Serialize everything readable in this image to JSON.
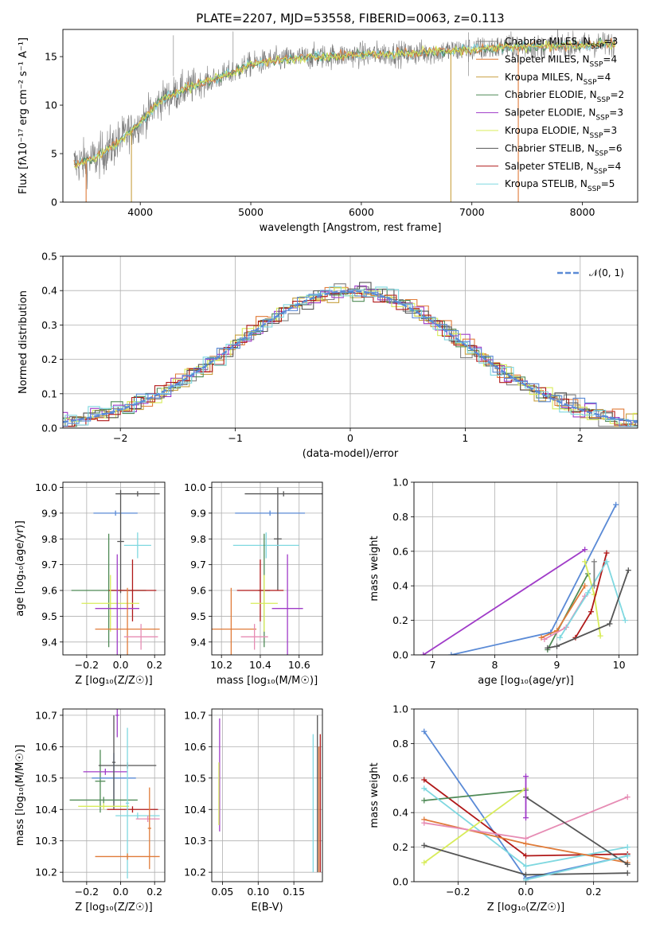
{
  "colors": {
    "chabrier_miles": "#808080",
    "salpeter_miles": "#e07b39",
    "kroupa_miles": "#c8a040",
    "chabrier_elodie": "#4f8a56",
    "salpeter_elodie": "#a03cc8",
    "kroupa_elodie": "#d8ec5a",
    "chabrier_stelib": "#555555",
    "salpeter_stelib": "#b01818",
    "kroupa_stelib": "#7fd8e0",
    "model_blue": "#5a8ad6",
    "model_pink": "#e68cb4",
    "gauss": "#5a8ad6"
  },
  "chart_data": [
    {
      "id": "spectrum",
      "type": "line",
      "title": "PLATE=2207, MJD=53558, FIBERID=0063, z=0.113",
      "xlabel": "wavelength [Angstrom, rest frame]",
      "ylabel": "Flux [fλ10⁻¹⁷ erg cm⁻² s⁻¹ A⁻¹]",
      "xlim": [
        3300,
        8500
      ],
      "ylim": [
        0,
        17.8
      ],
      "xticks": [
        "4000",
        "5000",
        "6000",
        "7000",
        "8000"
      ],
      "yticks": [
        "0",
        "5",
        "10",
        "15"
      ],
      "continuum": [
        [
          3400,
          3.9
        ],
        [
          3600,
          4.5
        ],
        [
          3800,
          6.2
        ],
        [
          4000,
          8.2
        ],
        [
          4200,
          10.6
        ],
        [
          4400,
          11.6
        ],
        [
          4600,
          12.4
        ],
        [
          4800,
          13.2
        ],
        [
          5000,
          14.2
        ],
        [
          5200,
          14.6
        ],
        [
          5400,
          14.8
        ],
        [
          5600,
          15.0
        ],
        [
          5800,
          15.1
        ],
        [
          6000,
          15.2
        ],
        [
          6200,
          15.3
        ],
        [
          6400,
          15.3
        ],
        [
          6600,
          15.4
        ],
        [
          6800,
          15.6
        ],
        [
          7000,
          15.7
        ],
        [
          7200,
          15.9
        ],
        [
          7400,
          16.0
        ],
        [
          7600,
          16.0
        ],
        [
          7800,
          16.1
        ],
        [
          8000,
          16.2
        ],
        [
          8200,
          16.3
        ],
        [
          8300,
          16.3
        ]
      ],
      "legend": [
        {
          "label": "Chabrier MILES, N",
          "sub": "SSP",
          "suffix": "=3"
        },
        {
          "label": "Salpeter MILES, N",
          "sub": "SSP",
          "suffix": "=4"
        },
        {
          "label": "Kroupa MILES, N",
          "sub": "SSP",
          "suffix": "=4"
        },
        {
          "label": "Chabrier ELODIE, N",
          "sub": "SSP",
          "suffix": "=2"
        },
        {
          "label": "Salpeter ELODIE, N",
          "sub": "SSP",
          "suffix": "=3"
        },
        {
          "label": "Kroupa ELODIE, N",
          "sub": "SSP",
          "suffix": "=3"
        },
        {
          "label": "Chabrier STELIB, N",
          "sub": "SSP",
          "suffix": "=6"
        },
        {
          "label": "Salpeter STELIB, N",
          "sub": "SSP",
          "suffix": "=4"
        },
        {
          "label": "Kroupa STELIB, N",
          "sub": "SSP",
          "suffix": "=5"
        }
      ]
    },
    {
      "id": "residuals",
      "type": "histogram",
      "xlabel": "(data-model)/error",
      "ylabel": "Normed distribution",
      "xlim": [
        -2.5,
        2.5
      ],
      "ylim": [
        0,
        0.5
      ],
      "xticks": [
        "−2",
        "−1",
        "0",
        "1",
        "2"
      ],
      "yticks": [
        "0.0",
        "0.1",
        "0.2",
        "0.3",
        "0.4",
        "0.5"
      ],
      "grid": true,
      "gauss_label": "𝒩(0, 1)",
      "legend_position": "top-right"
    },
    {
      "id": "age_vs_Z",
      "type": "scatter",
      "xlabel": "Z [log₁₀(Z/Z☉)]",
      "ylabel": "age  [log₁₀(age/yr)]",
      "xlim": [
        -0.34,
        0.26
      ],
      "ylim": [
        9.35,
        10.02
      ],
      "xticks": [
        "−0.2",
        "0.0",
        "0.2"
      ],
      "yticks": [
        "9.4",
        "9.5",
        "9.6",
        "9.7",
        "9.8",
        "9.9",
        "10.0"
      ],
      "grid": true,
      "points": [
        {
          "x": 0.1,
          "y": 9.975,
          "xerr": 0.13,
          "yerr": 0.01,
          "c": "chabrier_stelib"
        },
        {
          "x": -0.03,
          "y": 9.9,
          "xerr": 0.13,
          "yerr": 0.01,
          "c": "model_blue"
        },
        {
          "x": 0.0,
          "y": 9.79,
          "xerr": 0.02,
          "yerr": 0.2,
          "c": "chabrier_stelib"
        },
        {
          "x": 0.1,
          "y": 9.775,
          "xerr": 0.08,
          "yerr": 0.05,
          "c": "kroupa_stelib"
        },
        {
          "x": -0.07,
          "y": 9.6,
          "xerr": 0.22,
          "yerr": 0.22,
          "c": "chabrier_elodie"
        },
        {
          "x": 0.07,
          "y": 9.6,
          "xerr": 0.14,
          "yerr": 0.12,
          "c": "salpeter_stelib"
        },
        {
          "x": -0.06,
          "y": 9.55,
          "xerr": 0.17,
          "yerr": 0.11,
          "c": "kroupa_elodie"
        },
        {
          "x": -0.02,
          "y": 9.53,
          "xerr": 0.13,
          "yerr": 0.21,
          "c": "salpeter_elodie"
        },
        {
          "x": 0.04,
          "y": 9.45,
          "xerr": 0.19,
          "yerr": 0.16,
          "c": "salpeter_miles"
        },
        {
          "x": 0.12,
          "y": 9.42,
          "xerr": 0.1,
          "yerr": 0.05,
          "c": "model_pink"
        }
      ]
    },
    {
      "id": "age_vs_mass",
      "type": "scatter",
      "xlabel": "mass [log₁₀(M/M☉)]",
      "ylabel": "",
      "xlim": [
        10.15,
        10.72
      ],
      "ylim": [
        9.35,
        10.02
      ],
      "xticks": [
        "10.2",
        "10.4",
        "10.6"
      ],
      "yticks": [
        "9.4",
        "9.5",
        "9.6",
        "9.7",
        "9.8",
        "9.9",
        "10.0"
      ],
      "grid": true,
      "points": [
        {
          "x": 10.52,
          "y": 9.975,
          "xerr": 0.2,
          "yerr": 0.01,
          "c": "chabrier_stelib"
        },
        {
          "x": 10.45,
          "y": 9.9,
          "xerr": 0.18,
          "yerr": 0.01,
          "c": "model_blue"
        },
        {
          "x": 10.49,
          "y": 9.8,
          "xerr": 0.02,
          "yerr": 0.2,
          "c": "chabrier_stelib"
        },
        {
          "x": 10.43,
          "y": 9.775,
          "xerr": 0.17,
          "yerr": 0.05,
          "c": "kroupa_stelib"
        },
        {
          "x": 10.42,
          "y": 9.6,
          "xerr": 0.03,
          "yerr": 0.22,
          "c": "chabrier_elodie"
        },
        {
          "x": 10.4,
          "y": 9.6,
          "xerr": 0.12,
          "yerr": 0.12,
          "c": "salpeter_stelib"
        },
        {
          "x": 10.42,
          "y": 9.55,
          "xerr": 0.07,
          "yerr": 0.11,
          "c": "kroupa_elodie"
        },
        {
          "x": 10.54,
          "y": 9.53,
          "xerr": 0.08,
          "yerr": 0.21,
          "c": "salpeter_elodie"
        },
        {
          "x": 10.25,
          "y": 9.45,
          "xerr": 0.13,
          "yerr": 0.16,
          "c": "salpeter_miles"
        },
        {
          "x": 10.37,
          "y": 9.42,
          "xerr": 0.07,
          "yerr": 0.05,
          "c": "model_pink"
        }
      ]
    },
    {
      "id": "weight_vs_age",
      "type": "line",
      "xlabel": "age  [log₁₀(age/yr)]",
      "ylabel": "mass weight",
      "xlim": [
        6.7,
        10.3
      ],
      "ylim": [
        0,
        1.0
      ],
      "xticks": [
        "7",
        "8",
        "9",
        "10"
      ],
      "yticks": [
        "0.0",
        "0.2",
        "0.4",
        "0.6",
        "0.8",
        "1.0"
      ],
      "grid": true,
      "series": [
        {
          "c": "model_blue",
          "x": [
            7.3,
            8.9,
            9.95
          ],
          "y": [
            0.0,
            0.13,
            0.87
          ]
        },
        {
          "c": "salpeter_elodie",
          "x": [
            6.85,
            9.45
          ],
          "y": [
            0.0,
            0.61
          ]
        },
        {
          "c": "chabrier_elodie",
          "x": [
            8.85,
            9.5
          ],
          "y": [
            0.03,
            0.47
          ]
        },
        {
          "c": "salpeter_miles",
          "x": [
            8.75,
            9.0,
            9.45
          ],
          "y": [
            0.1,
            0.14,
            0.4
          ]
        },
        {
          "c": "model_pink",
          "x": [
            8.8,
            9.15,
            9.45
          ],
          "y": [
            0.09,
            0.16,
            0.34
          ]
        },
        {
          "c": "kroupa_elodie",
          "x": [
            9.45,
            9.6,
            9.7
          ],
          "y": [
            0.54,
            0.35,
            0.11
          ]
        },
        {
          "c": "salpeter_stelib",
          "x": [
            9.3,
            9.55,
            9.8
          ],
          "y": [
            0.1,
            0.25,
            0.59
          ]
        },
        {
          "c": "kroupa_stelib",
          "x": [
            9.05,
            9.5,
            9.8,
            10.1
          ],
          "y": [
            0.1,
            0.36,
            0.54,
            0.2
          ]
        },
        {
          "c": "chabrier_stelib",
          "x": [
            8.85,
            9.0,
            9.85,
            10.15
          ],
          "y": [
            0.04,
            0.05,
            0.18,
            0.49
          ]
        },
        {
          "c": "chabrier_miles",
          "x": [
            9.6,
            9.6
          ],
          "y": [
            0.54,
            0.4
          ]
        }
      ]
    },
    {
      "id": "mass_vs_Z",
      "type": "scatter",
      "xlabel": "Z [log₁₀(Z/Z☉)]",
      "ylabel": "mass [log₁₀(M/M☉)]",
      "xlim": [
        -0.34,
        0.26
      ],
      "ylim": [
        10.17,
        10.72
      ],
      "xticks": [
        "−0.2",
        "0.0",
        "0.2"
      ],
      "yticks": [
        "10.2",
        "10.3",
        "10.4",
        "10.5",
        "10.6",
        "10.7"
      ],
      "grid": true,
      "points": [
        {
          "x": -0.02,
          "y": 10.7,
          "xerr": 0.01,
          "yerr": 0.07,
          "c": "salpeter_elodie"
        },
        {
          "x": -0.12,
          "y": 10.49,
          "xerr": 0.03,
          "yerr": 0.1,
          "c": "chabrier_elodie"
        },
        {
          "x": 0.04,
          "y": 10.54,
          "xerr": 0.17,
          "yerr": 0.01,
          "c": "chabrier_stelib"
        },
        {
          "x": -0.09,
          "y": 10.52,
          "xerr": 0.13,
          "yerr": 0.01,
          "c": "salpeter_elodie"
        },
        {
          "x": -0.04,
          "y": 10.5,
          "xerr": 0.13,
          "yerr": 0.08,
          "c": "model_blue"
        },
        {
          "x": -0.04,
          "y": 10.55,
          "xerr": 0.01,
          "yerr": 0.15,
          "c": "chabrier_stelib"
        },
        {
          "x": -0.1,
          "y": 10.43,
          "xerr": 0.2,
          "yerr": 0.01,
          "c": "chabrier_elodie"
        },
        {
          "x": -0.1,
          "y": 10.41,
          "xerr": 0.15,
          "yerr": 0.01,
          "c": "kroupa_elodie"
        },
        {
          "x": 0.07,
          "y": 10.4,
          "xerr": 0.15,
          "yerr": 0.01,
          "c": "salpeter_stelib"
        },
        {
          "x": 0.1,
          "y": 10.38,
          "xerr": 0.13,
          "yerr": 0.01,
          "c": "kroupa_stelib"
        },
        {
          "x": 0.04,
          "y": 10.42,
          "xerr": 0.01,
          "yerr": 0.24,
          "c": "kroupa_stelib"
        },
        {
          "x": 0.16,
          "y": 10.37,
          "xerr": 0.07,
          "yerr": 0.01,
          "c": "model_pink"
        },
        {
          "x": 0.04,
          "y": 10.25,
          "xerr": 0.19,
          "yerr": 0.01,
          "c": "salpeter_miles"
        },
        {
          "x": 0.17,
          "y": 10.34,
          "xerr": 0.01,
          "yerr": 0.13,
          "c": "salpeter_miles"
        }
      ]
    },
    {
      "id": "mass_vs_ebv",
      "type": "scatter",
      "xlabel": "E(B-V)",
      "ylabel": "",
      "xlim": [
        0.035,
        0.19
      ],
      "ylim": [
        10.17,
        10.72
      ],
      "xticks": [
        "0.05",
        "0.10",
        "0.15"
      ],
      "yticks": [
        "10.2",
        "10.3",
        "10.4",
        "10.5",
        "10.6",
        "10.7"
      ],
      "grid": true,
      "points": [
        {
          "x": 0.046,
          "y": 10.51,
          "xerr": 0.0,
          "yerr": 0.18,
          "c": "salpeter_elodie"
        },
        {
          "x": 0.045,
          "y": 10.45,
          "xerr": 0.0,
          "yerr": 0.1,
          "c": "kroupa_elodie"
        },
        {
          "x": 0.177,
          "y": 10.42,
          "xerr": 0.0,
          "yerr": 0.22,
          "c": "kroupa_stelib"
        },
        {
          "x": 0.183,
          "y": 10.45,
          "xerr": 0.0,
          "yerr": 0.25,
          "c": "chabrier_stelib"
        },
        {
          "x": 0.187,
          "y": 10.42,
          "xerr": 0.0,
          "yerr": 0.22,
          "c": "salpeter_stelib"
        },
        {
          "x": 0.185,
          "y": 10.4,
          "xerr": 0.0,
          "yerr": 0.2,
          "c": "salpeter_miles"
        }
      ]
    },
    {
      "id": "weight_vs_Z",
      "type": "line",
      "xlabel": "Z [log₁₀(Z/Z☉)]",
      "ylabel": "mass weight",
      "xlim": [
        -0.33,
        0.33
      ],
      "ylim": [
        0,
        1.0
      ],
      "xticks": [
        "−0.2",
        "0.0",
        "0.2"
      ],
      "yticks": [
        "0.0",
        "0.2",
        "0.4",
        "0.6",
        "0.8",
        "1.0"
      ],
      "grid": true,
      "series": [
        {
          "c": "model_blue",
          "x": [
            -0.3,
            0.0,
            0.3
          ],
          "y": [
            0.87,
            0.02,
            0.15
          ]
        },
        {
          "c": "salpeter_stelib",
          "x": [
            -0.3,
            0.0,
            0.3
          ],
          "y": [
            0.59,
            0.15,
            0.16
          ]
        },
        {
          "c": "chabrier_elodie",
          "x": [
            -0.3,
            0.0
          ],
          "y": [
            0.47,
            0.53
          ]
        },
        {
          "c": "kroupa_stelib",
          "x": [
            -0.3,
            0.0,
            0.3
          ],
          "y": [
            0.54,
            0.09,
            0.2
          ]
        },
        {
          "c": "salpeter_miles",
          "x": [
            -0.3,
            0.0,
            0.3
          ],
          "y": [
            0.36,
            0.22,
            0.11
          ]
        },
        {
          "c": "model_pink",
          "x": [
            -0.3,
            0.0,
            0.3
          ],
          "y": [
            0.34,
            0.25,
            0.49
          ]
        },
        {
          "c": "kroupa_elodie",
          "x": [
            -0.3,
            0.0
          ],
          "y": [
            0.11,
            0.54
          ]
        },
        {
          "c": "chabrier_stelib",
          "x": [
            -0.3,
            0.0,
            0.3
          ],
          "y": [
            0.21,
            0.04,
            0.05
          ]
        },
        {
          "c": "chabrier_stelib",
          "x": [
            0.0,
            0.3
          ],
          "y": [
            0.49,
            0.1
          ]
        },
        {
          "c": "salpeter_elodie",
          "x": [
            0.0,
            0.0
          ],
          "y": [
            0.61,
            0.37
          ]
        },
        {
          "c": "kroupa_stelib",
          "x": [
            0.0,
            0.3
          ],
          "y": [
            0.01,
            0.15
          ]
        }
      ]
    }
  ]
}
